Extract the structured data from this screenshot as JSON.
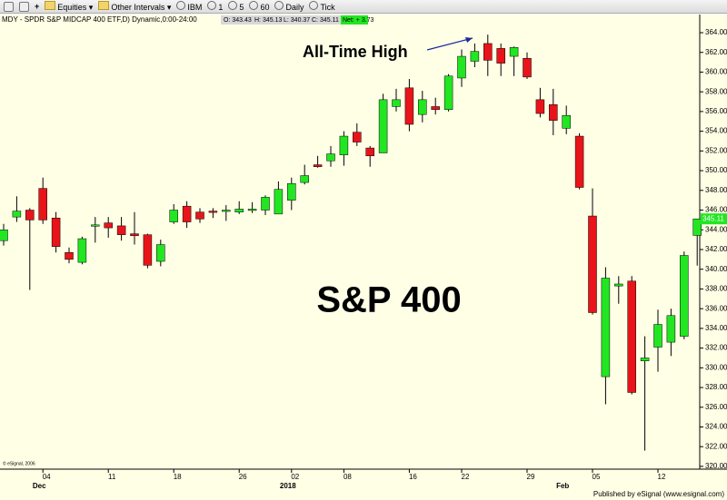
{
  "toolbar": {
    "items": [
      "Equities",
      "Other Intervals",
      "IBM",
      "1",
      "5",
      "60",
      "Daily",
      "Tick"
    ]
  },
  "chart_data": {
    "type": "candlestick",
    "title": "MDY - SPDR S&P MIDCAP 400 ETF,D) Dynamic,0:00-24:00",
    "ohlc_labels": [
      "O: 343.43",
      "H: 345.13",
      "L: 340.37",
      "C: 345.11"
    ],
    "net_label": "Net: + 3.73",
    "annotations": [
      "All-Time High",
      "S&P 400"
    ],
    "copyright": "© eSignal, 2006",
    "footer": "Published by eSignal (www.esignal.com)",
    "categories": [
      null,
      null,
      null,
      "04",
      null,
      null,
      null,
      null,
      "11",
      null,
      null,
      null,
      null,
      "18",
      null,
      null,
      null,
      null,
      "26",
      null,
      null,
      null,
      "02",
      null,
      null,
      null,
      "08",
      null,
      null,
      null,
      null,
      "16",
      null,
      null,
      null,
      "22",
      null,
      null,
      null,
      null,
      "29",
      null,
      null,
      null,
      null,
      "05",
      null,
      null,
      null,
      null,
      "12",
      null,
      null,
      null
    ],
    "period_categories": [
      null,
      null,
      null,
      "Dec",
      null,
      null,
      null,
      null,
      null,
      null,
      null,
      null,
      null,
      null,
      null,
      null,
      null,
      null,
      null,
      null,
      null,
      null,
      "2018",
      null,
      null,
      null,
      null,
      null,
      null,
      null,
      null,
      null,
      null,
      null,
      null,
      null,
      null,
      null,
      null,
      null,
      null,
      null,
      null,
      "Feb",
      null,
      null,
      null,
      null,
      null,
      null,
      null,
      null,
      null,
      null
    ],
    "open": [
      342.9,
      345.3,
      346.0,
      348.2,
      345.2,
      341.7,
      340.7,
      344.4,
      344.7,
      344.4,
      343.6,
      343.5,
      340.8,
      344.8,
      346.4,
      345.8,
      345.9,
      345.9,
      345.8,
      346.0,
      346.0,
      345.6,
      347.0,
      348.8,
      350.6,
      351.0,
      351.6,
      353.9,
      352.3,
      351.8,
      356.5,
      358.4,
      355.7,
      356.5,
      356.2,
      359.4,
      361.1,
      362.9,
      362.4,
      361.6,
      361.4,
      357.2,
      356.7,
      354.3,
      353.5,
      345.4,
      329.1,
      338.3,
      338.8,
      330.7,
      332.1,
      332.6,
      333.2,
      343.43
    ],
    "high": [
      344.6,
      347.4,
      346.2,
      349.3,
      345.8,
      342.2,
      343.3,
      345.3,
      345.3,
      345.3,
      345.8,
      343.6,
      343.0,
      346.6,
      346.9,
      346.2,
      346.2,
      346.5,
      346.9,
      346.8,
      347.5,
      348.9,
      349.3,
      350.6,
      351.5,
      352.5,
      354.0,
      354.8,
      352.5,
      357.8,
      358.3,
      359.3,
      358.1,
      357.4,
      359.8,
      362.3,
      362.9,
      363.8,
      362.9,
      362.6,
      362.0,
      358.4,
      358.3,
      356.6,
      353.8,
      348.2,
      340.2,
      339.3,
      339.3,
      333.2,
      335.9,
      336.0,
      341.8,
      345.13
    ],
    "low": [
      342.4,
      344.8,
      337.9,
      344.6,
      341.7,
      340.6,
      340.5,
      342.7,
      343.2,
      342.9,
      342.5,
      340.1,
      340.3,
      344.6,
      344.2,
      344.7,
      345.2,
      344.9,
      345.6,
      345.7,
      345.5,
      345.6,
      346.0,
      348.6,
      350.3,
      350.4,
      350.5,
      352.5,
      350.4,
      351.8,
      356.0,
      354.0,
      354.9,
      355.7,
      356.0,
      358.5,
      360.5,
      359.6,
      359.6,
      359.6,
      359.3,
      355.4,
      353.6,
      353.7,
      348.1,
      335.4,
      326.3,
      336.5,
      327.3,
      321.6,
      329.6,
      331.2,
      332.9,
      340.37
    ],
    "close": [
      344.0,
      345.9,
      345.0,
      345.0,
      342.3,
      341.0,
      343.1,
      344.5,
      344.2,
      343.5,
      343.4,
      340.4,
      342.5,
      346.0,
      344.8,
      345.1,
      345.8,
      346.0,
      346.1,
      346.1,
      347.3,
      348.1,
      348.7,
      349.5,
      350.4,
      351.7,
      353.5,
      352.9,
      351.5,
      357.2,
      357.2,
      354.7,
      357.2,
      356.2,
      359.6,
      361.6,
      362.1,
      361.2,
      360.9,
      362.5,
      359.5,
      355.8,
      355.1,
      355.6,
      348.3,
      335.6,
      339.1,
      338.5,
      327.5,
      331.0,
      334.4,
      335.3,
      341.4,
      345.11
    ],
    "up_color": "#22e622",
    "down_color": "#e8141a",
    "background": "#ffffe6",
    "ylim": [
      319.72,
      365.84
    ],
    "yticks": [
      {
        "value": 320,
        "label": "320.00"
      },
      {
        "value": 322,
        "label": "322.00"
      },
      {
        "value": 324,
        "label": "324.00"
      },
      {
        "value": 326,
        "label": "326.00"
      },
      {
        "value": 328,
        "label": "328.00"
      },
      {
        "value": 330,
        "label": "330.00"
      },
      {
        "value": 332,
        "label": "332.00"
      },
      {
        "value": 334,
        "label": "334.00"
      },
      {
        "value": 336,
        "label": "336.00"
      },
      {
        "value": 338,
        "label": "338.00"
      },
      {
        "value": 340,
        "label": "340.00"
      },
      {
        "value": 342,
        "label": "342.00"
      },
      {
        "value": 344,
        "label": "344.00"
      },
      {
        "value": 346,
        "label": "346.00"
      },
      {
        "value": 348,
        "label": "348.00"
      },
      {
        "value": 350,
        "label": "350.00"
      },
      {
        "value": 352,
        "label": "352.00"
      },
      {
        "value": 354,
        "label": "354.00"
      },
      {
        "value": 356,
        "label": "356.00"
      },
      {
        "value": 358,
        "label": "358.00"
      },
      {
        "value": 360,
        "label": "360.00"
      },
      {
        "value": 362,
        "label": "362.00"
      },
      {
        "value": 364,
        "label": "364.00"
      }
    ],
    "grid": false
  }
}
